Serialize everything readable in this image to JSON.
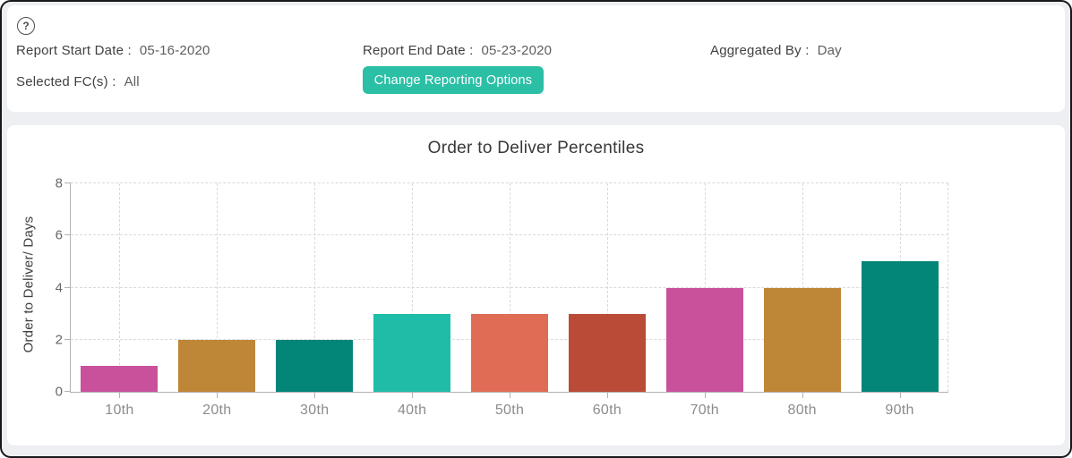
{
  "header": {
    "help_glyph": "?",
    "report_start": {
      "label": "Report Start Date :",
      "value": "05-16-2020"
    },
    "report_end": {
      "label": "Report End Date :",
      "value": "05-23-2020"
    },
    "aggregated": {
      "label": "Aggregated By :",
      "value": "Day"
    },
    "selected_fc": {
      "label": "Selected FC(s) :",
      "value": "All"
    },
    "change_button_label": "Change Reporting Options",
    "button_color": "#2BBFA6"
  },
  "chart_data": {
    "type": "bar",
    "title": "Order to Deliver Percentiles",
    "xlabel": "",
    "ylabel": "Order to Deliver/ Days",
    "categories": [
      "10th",
      "20th",
      "30th",
      "40th",
      "50th",
      "60th",
      "70th",
      "80th",
      "90th"
    ],
    "values": [
      1,
      2,
      2,
      3,
      3,
      3,
      4,
      4,
      5
    ],
    "bar_colors": [
      "#C9519B",
      "#BE8637",
      "#038577",
      "#1FBDA7",
      "#E16C55",
      "#B94B37",
      "#C9519B",
      "#BE8637",
      "#038577"
    ],
    "ylim": [
      0,
      8
    ],
    "yticks": [
      0,
      2,
      4,
      6,
      8
    ],
    "grid": "dashed",
    "legend": "none"
  }
}
